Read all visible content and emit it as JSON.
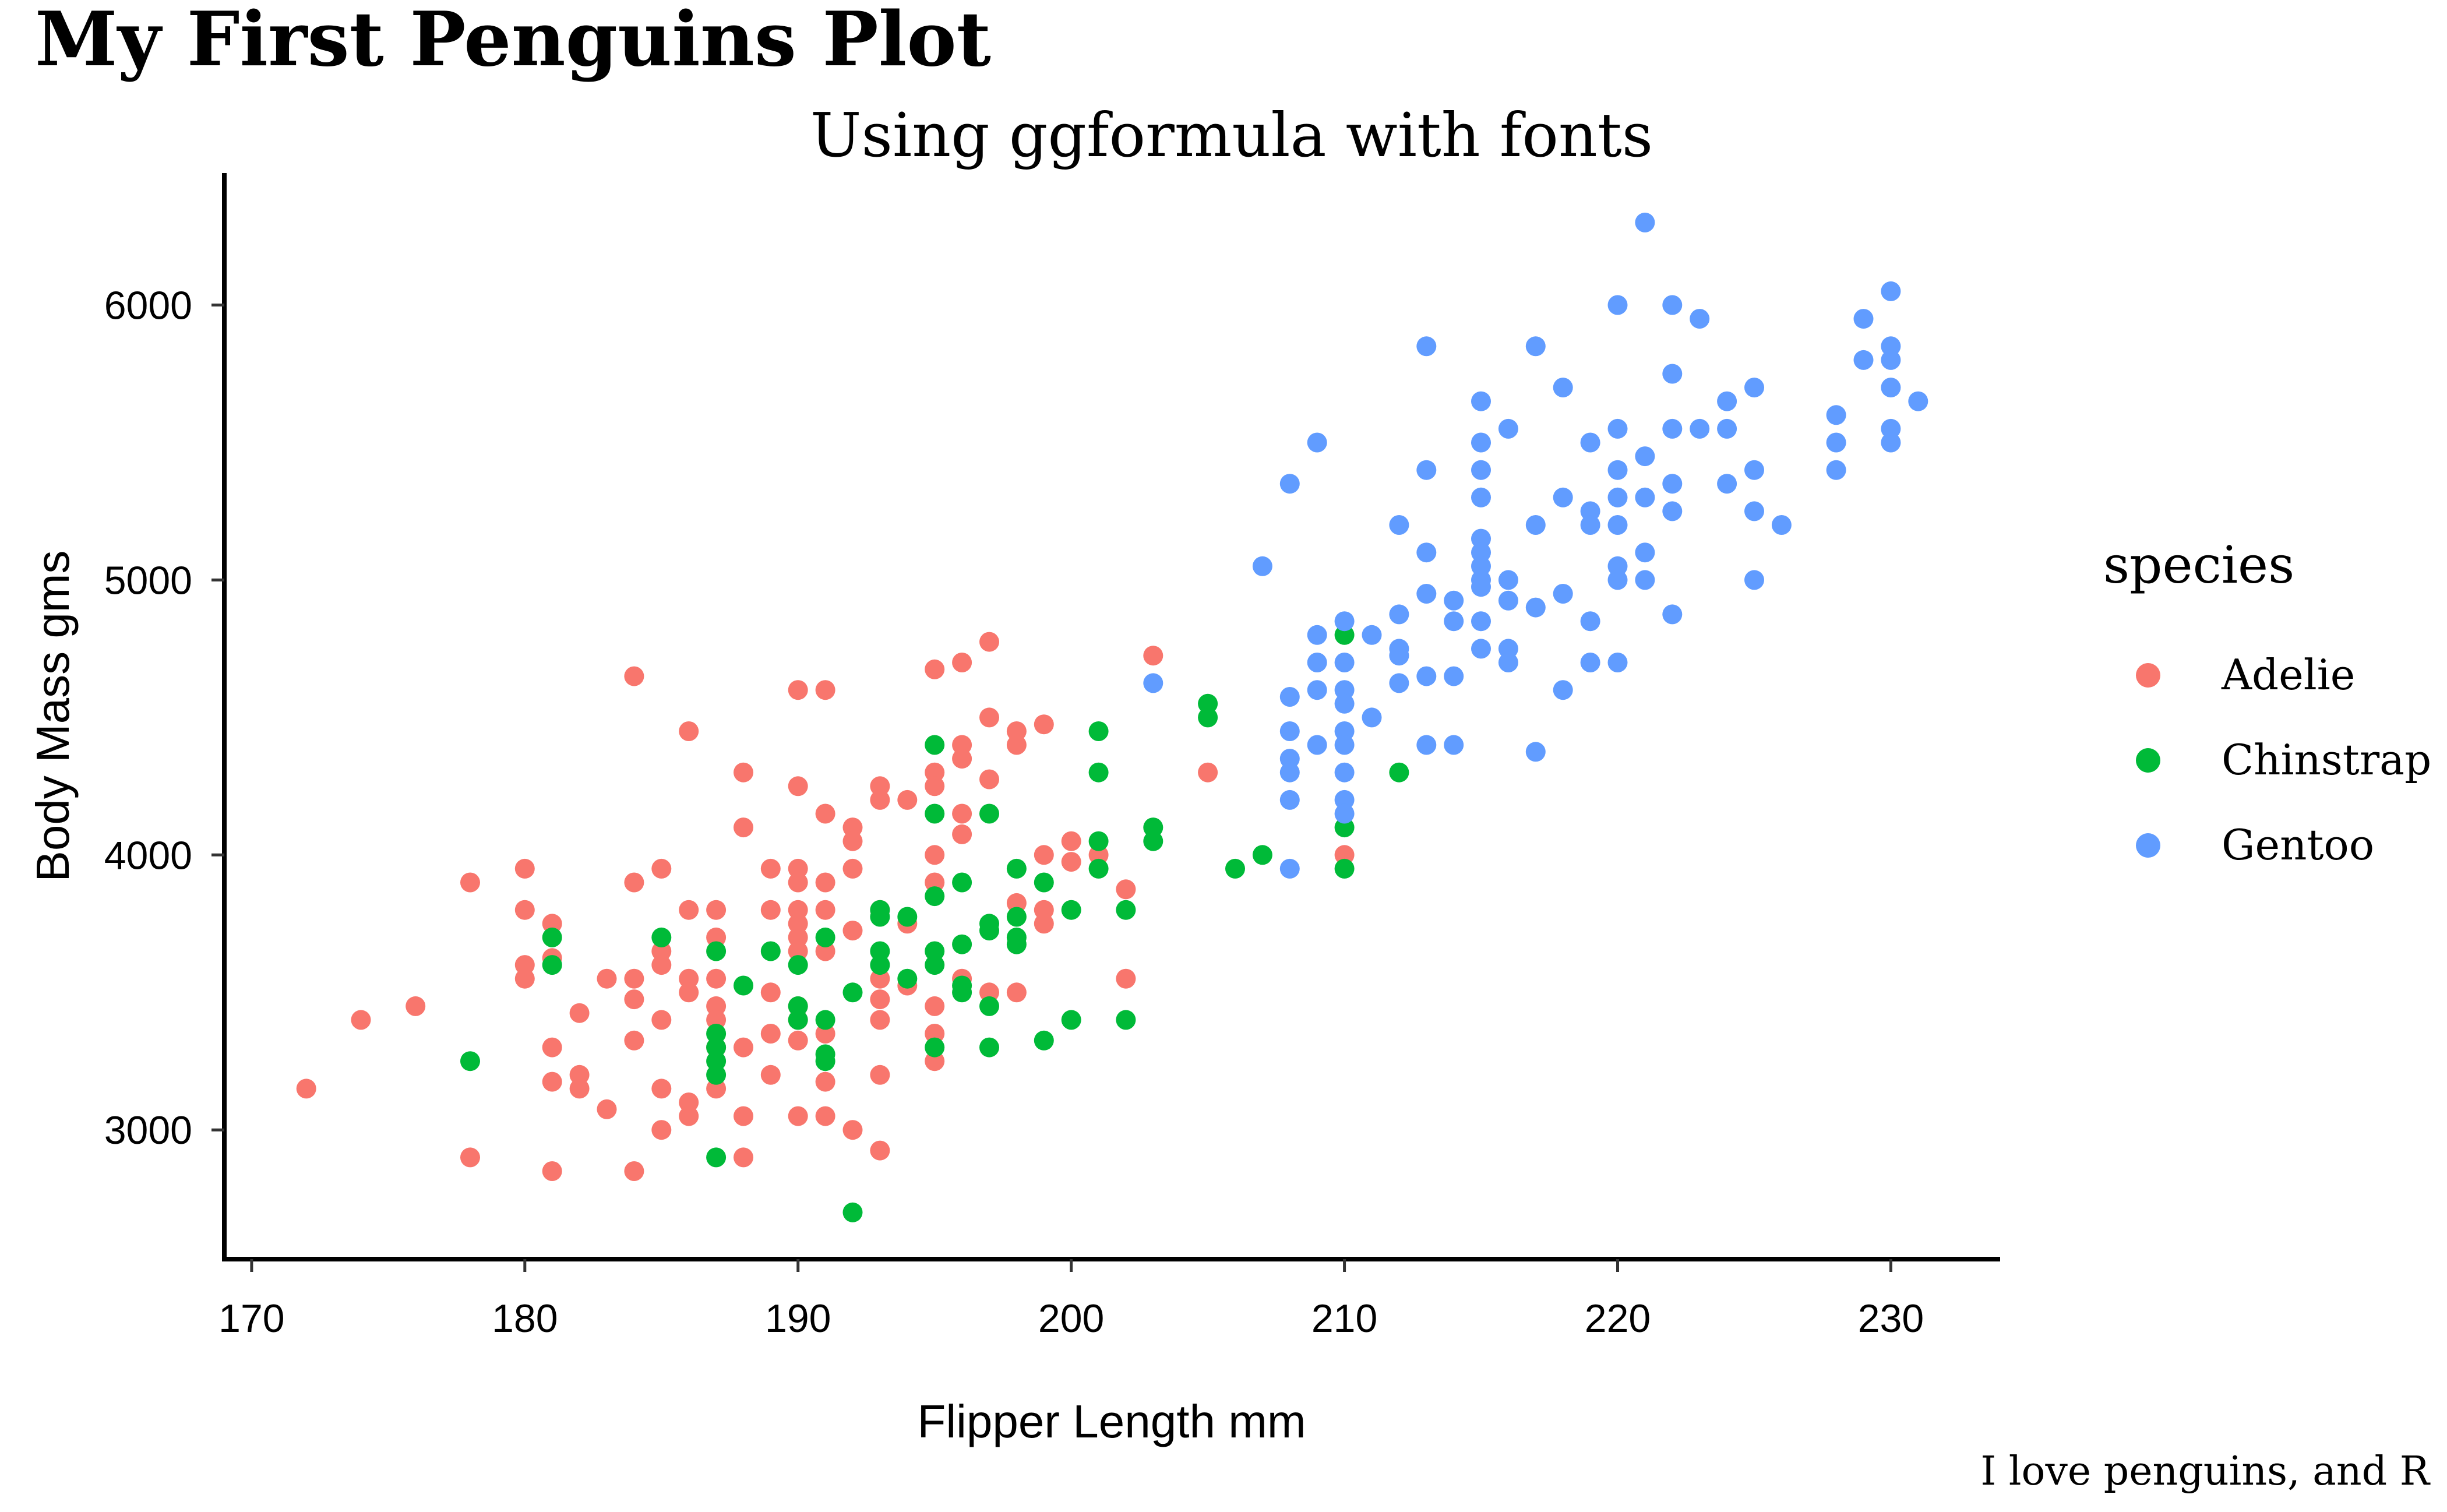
{
  "chart_data": {
    "type": "scatter",
    "title": "My First Penguins Plot",
    "subtitle": "Using ggformula with fonts",
    "caption": "I love penguins, and R",
    "xlabel": "Flipper Length mm",
    "ylabel": "Body Mass gms",
    "xlim": [
      169,
      234
    ],
    "ylim": [
      2530,
      6480
    ],
    "xticks": [
      170,
      180,
      190,
      200,
      210,
      220,
      230
    ],
    "yticks": [
      3000,
      4000,
      5000,
      6000
    ],
    "grid": false,
    "legend": {
      "title": "species",
      "position": "right"
    },
    "series": [
      {
        "name": "Adelie",
        "color": "#F8766D",
        "points": [
          [
            172,
            3150
          ],
          [
            174,
            3400
          ],
          [
            176,
            3450
          ],
          [
            178,
            3900
          ],
          [
            178,
            2900
          ],
          [
            180,
            3950
          ],
          [
            180,
            3800
          ],
          [
            180,
            3600
          ],
          [
            180,
            3550
          ],
          [
            181,
            3750
          ],
          [
            181,
            3625
          ],
          [
            181,
            3300
          ],
          [
            181,
            3175
          ],
          [
            181,
            2850
          ],
          [
            182,
            3425
          ],
          [
            182,
            3200
          ],
          [
            182,
            3150
          ],
          [
            183,
            3550
          ],
          [
            183,
            3075
          ],
          [
            184,
            4650
          ],
          [
            184,
            3900
          ],
          [
            184,
            3550
          ],
          [
            184,
            3475
          ],
          [
            184,
            3325
          ],
          [
            184,
            2850
          ],
          [
            185,
            3950
          ],
          [
            185,
            3650
          ],
          [
            185,
            3600
          ],
          [
            185,
            3400
          ],
          [
            185,
            3150
          ],
          [
            185,
            3000
          ],
          [
            186,
            4450
          ],
          [
            186,
            3800
          ],
          [
            186,
            3550
          ],
          [
            186,
            3500
          ],
          [
            186,
            3100
          ],
          [
            186,
            3050
          ],
          [
            187,
            3800
          ],
          [
            187,
            3700
          ],
          [
            187,
            3550
          ],
          [
            187,
            3450
          ],
          [
            187,
            3400
          ],
          [
            187,
            3300
          ],
          [
            187,
            3150
          ],
          [
            188,
            4300
          ],
          [
            188,
            4100
          ],
          [
            188,
            3300
          ],
          [
            188,
            3050
          ],
          [
            188,
            2900
          ],
          [
            189,
            3950
          ],
          [
            189,
            3800
          ],
          [
            189,
            3500
          ],
          [
            189,
            3350
          ],
          [
            189,
            3200
          ],
          [
            190,
            4600
          ],
          [
            190,
            4250
          ],
          [
            190,
            3950
          ],
          [
            190,
            3900
          ],
          [
            190,
            3800
          ],
          [
            190,
            3750
          ],
          [
            190,
            3700
          ],
          [
            190,
            3650
          ],
          [
            190,
            3450
          ],
          [
            190,
            3400
          ],
          [
            190,
            3325
          ],
          [
            190,
            3050
          ],
          [
            191,
            4600
          ],
          [
            191,
            4150
          ],
          [
            191,
            3900
          ],
          [
            191,
            3800
          ],
          [
            191,
            3650
          ],
          [
            191,
            3350
          ],
          [
            191,
            3175
          ],
          [
            191,
            3050
          ],
          [
            192,
            4100
          ],
          [
            192,
            4050
          ],
          [
            192,
            3950
          ],
          [
            192,
            3725
          ],
          [
            192,
            3000
          ],
          [
            193,
            4250
          ],
          [
            193,
            4200
          ],
          [
            193,
            3800
          ],
          [
            193,
            3550
          ],
          [
            193,
            3475
          ],
          [
            193,
            3400
          ],
          [
            193,
            3200
          ],
          [
            193,
            2925
          ],
          [
            194,
            4200
          ],
          [
            194,
            3750
          ],
          [
            194,
            3525
          ],
          [
            195,
            4675
          ],
          [
            195,
            4300
          ],
          [
            195,
            4250
          ],
          [
            195,
            4000
          ],
          [
            195,
            3900
          ],
          [
            195,
            3450
          ],
          [
            195,
            3350
          ],
          [
            195,
            3250
          ],
          [
            196,
            4700
          ],
          [
            196,
            4400
          ],
          [
            196,
            4350
          ],
          [
            196,
            4150
          ],
          [
            196,
            4075
          ],
          [
            196,
            3550
          ],
          [
            197,
            4775
          ],
          [
            197,
            4500
          ],
          [
            197,
            4275
          ],
          [
            197,
            3500
          ],
          [
            198,
            4450
          ],
          [
            198,
            4400
          ],
          [
            198,
            3825
          ],
          [
            198,
            3500
          ],
          [
            199,
            4475
          ],
          [
            199,
            4000
          ],
          [
            199,
            3800
          ],
          [
            199,
            3750
          ],
          [
            200,
            4050
          ],
          [
            200,
            3975
          ],
          [
            201,
            4000
          ],
          [
            202,
            3875
          ],
          [
            202,
            3550
          ],
          [
            203,
            4725
          ],
          [
            205,
            4300
          ],
          [
            210,
            4000
          ]
        ]
      },
      {
        "name": "Chinstrap",
        "color": "#00BA38",
        "points": [
          [
            178,
            3250
          ],
          [
            181,
            3700
          ],
          [
            181,
            3600
          ],
          [
            185,
            3700
          ],
          [
            187,
            3650
          ],
          [
            187,
            3350
          ],
          [
            187,
            3300
          ],
          [
            187,
            3250
          ],
          [
            187,
            3200
          ],
          [
            187,
            2900
          ],
          [
            188,
            3525
          ],
          [
            189,
            3650
          ],
          [
            190,
            3600
          ],
          [
            190,
            3450
          ],
          [
            190,
            3400
          ],
          [
            191,
            3700
          ],
          [
            191,
            3400
          ],
          [
            191,
            3250
          ],
          [
            191,
            3275
          ],
          [
            192,
            3500
          ],
          [
            192,
            2700
          ],
          [
            193,
            3800
          ],
          [
            193,
            3775
          ],
          [
            193,
            3650
          ],
          [
            193,
            3600
          ],
          [
            194,
            3775
          ],
          [
            194,
            3550
          ],
          [
            195,
            4400
          ],
          [
            195,
            4150
          ],
          [
            195,
            3850
          ],
          [
            195,
            3650
          ],
          [
            195,
            3600
          ],
          [
            195,
            3300
          ],
          [
            196,
            3900
          ],
          [
            196,
            3675
          ],
          [
            196,
            3525
          ],
          [
            196,
            3500
          ],
          [
            197,
            4150
          ],
          [
            197,
            3750
          ],
          [
            197,
            3725
          ],
          [
            197,
            3450
          ],
          [
            197,
            3300
          ],
          [
            198,
            3950
          ],
          [
            198,
            3775
          ],
          [
            198,
            3700
          ],
          [
            198,
            3675
          ],
          [
            199,
            3900
          ],
          [
            199,
            3325
          ],
          [
            200,
            3800
          ],
          [
            200,
            3400
          ],
          [
            201,
            4450
          ],
          [
            201,
            4300
          ],
          [
            201,
            4050
          ],
          [
            201,
            3950
          ],
          [
            202,
            3800
          ],
          [
            202,
            3400
          ],
          [
            203,
            4100
          ],
          [
            203,
            4050
          ],
          [
            205,
            4550
          ],
          [
            205,
            4500
          ],
          [
            206,
            3950
          ],
          [
            207,
            4000
          ],
          [
            210,
            4800
          ],
          [
            210,
            4100
          ],
          [
            210,
            3950
          ],
          [
            212,
            4300
          ]
        ]
      },
      {
        "name": "Gentoo",
        "color": "#619CFF",
        "points": [
          [
            203,
            4625
          ],
          [
            207,
            5050
          ],
          [
            208,
            5350
          ],
          [
            208,
            4575
          ],
          [
            208,
            4450
          ],
          [
            208,
            4350
          ],
          [
            208,
            4300
          ],
          [
            208,
            4200
          ],
          [
            208,
            3950
          ],
          [
            209,
            5500
          ],
          [
            209,
            4800
          ],
          [
            209,
            4700
          ],
          [
            209,
            4600
          ],
          [
            209,
            4400
          ],
          [
            210,
            4850
          ],
          [
            210,
            4700
          ],
          [
            210,
            4600
          ],
          [
            210,
            4550
          ],
          [
            210,
            4450
          ],
          [
            210,
            4400
          ],
          [
            210,
            4300
          ],
          [
            210,
            4200
          ],
          [
            210,
            4150
          ],
          [
            211,
            4800
          ],
          [
            211,
            4500
          ],
          [
            212,
            5200
          ],
          [
            212,
            4875
          ],
          [
            212,
            4750
          ],
          [
            212,
            4725
          ],
          [
            212,
            4625
          ],
          [
            213,
            5850
          ],
          [
            213,
            5400
          ],
          [
            213,
            5100
          ],
          [
            213,
            4950
          ],
          [
            213,
            4650
          ],
          [
            213,
            4400
          ],
          [
            214,
            4925
          ],
          [
            214,
            4850
          ],
          [
            214,
            4650
          ],
          [
            214,
            4400
          ],
          [
            215,
            5650
          ],
          [
            215,
            5500
          ],
          [
            215,
            5400
          ],
          [
            215,
            5300
          ],
          [
            215,
            5150
          ],
          [
            215,
            5100
          ],
          [
            215,
            5050
          ],
          [
            215,
            5000
          ],
          [
            215,
            4975
          ],
          [
            215,
            4850
          ],
          [
            215,
            4750
          ],
          [
            216,
            5550
          ],
          [
            216,
            5000
          ],
          [
            216,
            4925
          ],
          [
            216,
            4750
          ],
          [
            216,
            4700
          ],
          [
            217,
            5850
          ],
          [
            217,
            5200
          ],
          [
            217,
            4900
          ],
          [
            217,
            4375
          ],
          [
            218,
            5700
          ],
          [
            218,
            5300
          ],
          [
            218,
            4950
          ],
          [
            218,
            4600
          ],
          [
            219,
            5500
          ],
          [
            219,
            5250
          ],
          [
            219,
            5200
          ],
          [
            219,
            4850
          ],
          [
            219,
            4700
          ],
          [
            220,
            6000
          ],
          [
            220,
            5550
          ],
          [
            220,
            5400
          ],
          [
            220,
            5300
          ],
          [
            220,
            5200
          ],
          [
            220,
            5050
          ],
          [
            220,
            5000
          ],
          [
            220,
            4700
          ],
          [
            221,
            6300
          ],
          [
            221,
            5450
          ],
          [
            221,
            5300
          ],
          [
            221,
            5100
          ],
          [
            221,
            5000
          ],
          [
            222,
            6000
          ],
          [
            222,
            5750
          ],
          [
            222,
            5550
          ],
          [
            222,
            5350
          ],
          [
            222,
            5250
          ],
          [
            222,
            4875
          ],
          [
            223,
            5950
          ],
          [
            223,
            5550
          ],
          [
            224,
            5650
          ],
          [
            224,
            5550
          ],
          [
            224,
            5350
          ],
          [
            225,
            5700
          ],
          [
            225,
            5400
          ],
          [
            225,
            5250
          ],
          [
            225,
            5000
          ],
          [
            226,
            5200
          ],
          [
            228,
            5600
          ],
          [
            228,
            5500
          ],
          [
            228,
            5400
          ],
          [
            229,
            5950
          ],
          [
            229,
            5800
          ],
          [
            230,
            6050
          ],
          [
            230,
            5850
          ],
          [
            230,
            5800
          ],
          [
            230,
            5700
          ],
          [
            230,
            5550
          ],
          [
            230,
            5500
          ],
          [
            231,
            5650
          ]
        ]
      }
    ]
  }
}
